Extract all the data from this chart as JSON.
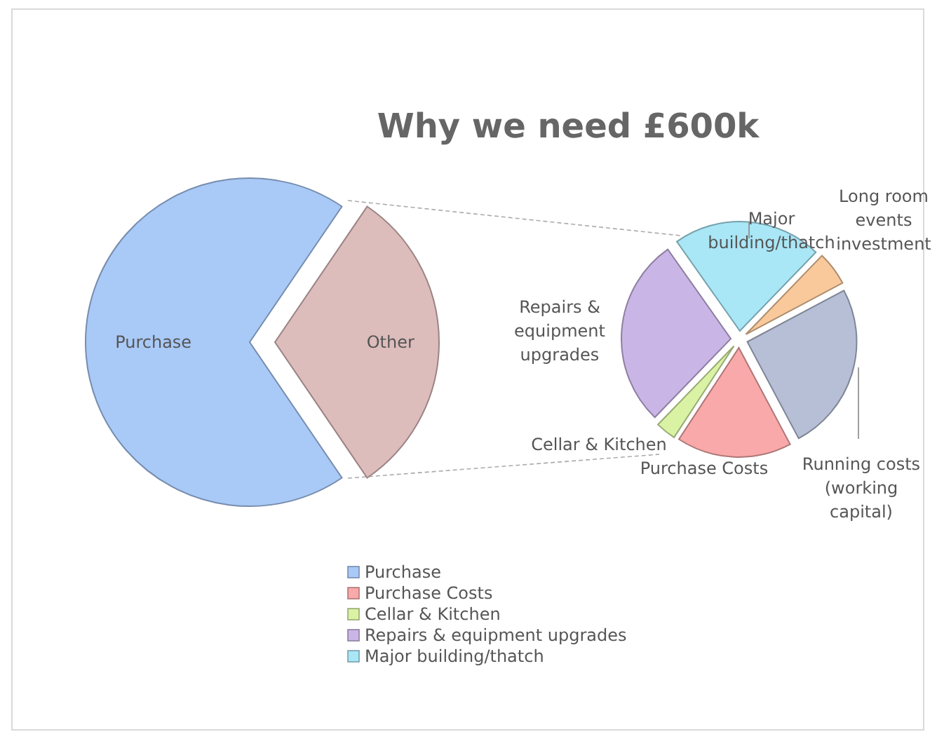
{
  "chart_data": [
    {
      "type": "pie",
      "title": "Why we need £600k",
      "categories": [
        "Purchase",
        "Other"
      ],
      "values": [
        69,
        31
      ],
      "colors": [
        "#a9c9f7",
        "#ddbcbc"
      ],
      "legend": "bottom"
    },
    {
      "type": "pie",
      "categories": [
        "Purchase Costs",
        "Cellar & Kitchen",
        "Repairs & equipment upgrades",
        "Major building/thatch",
        "Long room events investment",
        "Running costs (working capital)"
      ],
      "values": [
        17,
        3,
        28,
        22,
        5,
        25
      ],
      "colors": [
        "#f9a9a9",
        "#d9f2a4",
        "#cab6e6",
        "#a9e6f6",
        "#f9c99b",
        "#b6bfd6"
      ],
      "legend": "bottom"
    }
  ]
}
